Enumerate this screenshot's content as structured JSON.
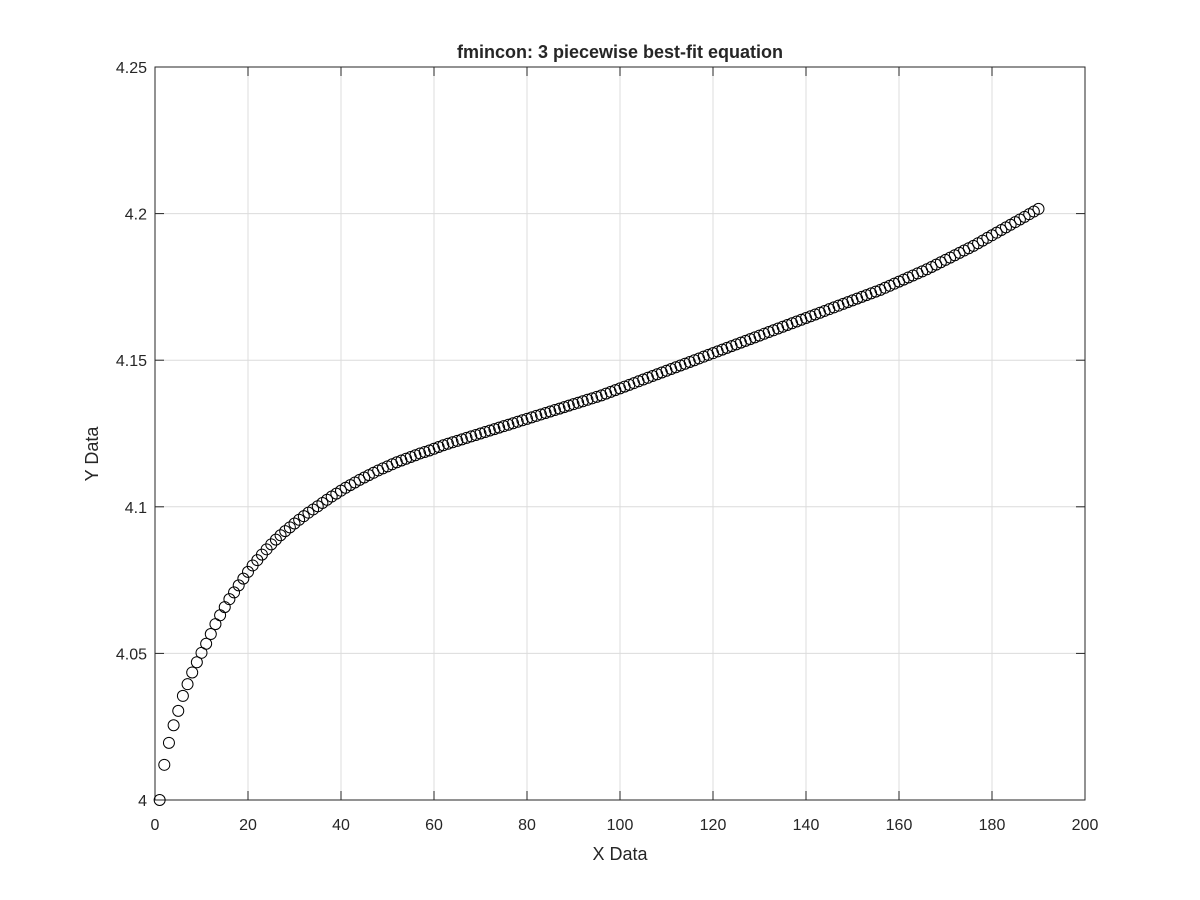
{
  "chart_data": {
    "type": "scatter",
    "title": "fmincon: 3 piecewise best-fit equation",
    "xlabel": "X Data",
    "ylabel": "Y Data",
    "xlim": [
      0,
      200
    ],
    "ylim": [
      4,
      4.25
    ],
    "xticks": [
      "0",
      "20",
      "40",
      "60",
      "80",
      "100",
      "120",
      "140",
      "160",
      "180",
      "200"
    ],
    "yticks": [
      "4",
      "4.05",
      "4.1",
      "4.15",
      "4.2",
      "4.25"
    ],
    "grid": true,
    "marker": "open-circle",
    "colors": {
      "marker": "#000000",
      "grid": "#dcdcdc",
      "axes": "#262626"
    },
    "series": [
      {
        "x": [
          1,
          2,
          3,
          4,
          5,
          6,
          7,
          8,
          9,
          10,
          11,
          12,
          13,
          14,
          15,
          16,
          17,
          18,
          19,
          20,
          21,
          22,
          23,
          24,
          25,
          26,
          27,
          28,
          29,
          30,
          31,
          32,
          33,
          34,
          35,
          36,
          37,
          38,
          39,
          40,
          41,
          42,
          43,
          44,
          45,
          46,
          47,
          48,
          49,
          50,
          51,
          52,
          53,
          54,
          55,
          56,
          57,
          58,
          59,
          60,
          61,
          62,
          63,
          64,
          65,
          66,
          67,
          68,
          69,
          70,
          71,
          72,
          73,
          74,
          75,
          76,
          77,
          78,
          79,
          80,
          81,
          82,
          83,
          84,
          85,
          86,
          87,
          88,
          89,
          90,
          91,
          92,
          93,
          94,
          95,
          96,
          97,
          98,
          99,
          100,
          101,
          102,
          103,
          104,
          105,
          106,
          107,
          108,
          109,
          110,
          111,
          112,
          113,
          114,
          115,
          116,
          117,
          118,
          119,
          120,
          121,
          122,
          123,
          124,
          125,
          126,
          127,
          128,
          129,
          130,
          131,
          132,
          133,
          134,
          135,
          136,
          137,
          138,
          139,
          140,
          141,
          142,
          143,
          144,
          145,
          146,
          147,
          148,
          149,
          150,
          151,
          152,
          153,
          154,
          155,
          156,
          157,
          158,
          159,
          160,
          161,
          162,
          163,
          164,
          165,
          166,
          167,
          168,
          169,
          170,
          171,
          172,
          173,
          174,
          175,
          176,
          177,
          178,
          179,
          180,
          181,
          182,
          183,
          184,
          185,
          186,
          187,
          188,
          189,
          190
        ],
        "y": [
          4.0,
          4.012,
          4.0195,
          4.0255,
          4.0304,
          4.0355,
          4.0395,
          4.0435,
          4.047,
          4.0502,
          4.0533,
          4.0566,
          4.06,
          4.063,
          4.0658,
          4.0685,
          4.0708,
          4.0732,
          4.0755,
          4.0778,
          4.08,
          4.0818,
          4.0837,
          4.0855,
          4.0872,
          4.0888,
          4.0903,
          4.0917,
          4.093,
          4.0943,
          4.0956,
          4.0968,
          4.098,
          4.0991,
          4.1002,
          4.1013,
          4.1024,
          4.1035,
          4.1045,
          4.1055,
          4.1065,
          4.1074,
          4.1083,
          4.1092,
          4.11,
          4.1108,
          4.1116,
          4.1124,
          4.1131,
          4.1138,
          4.1145,
          4.1152,
          4.1158,
          4.1164,
          4.117,
          4.1176,
          4.1182,
          4.1187,
          4.1192,
          4.1198,
          4.1204,
          4.121,
          4.1215,
          4.122,
          4.1225,
          4.123,
          4.1235,
          4.124,
          4.1245,
          4.125,
          4.1255,
          4.126,
          4.1265,
          4.127,
          4.1275,
          4.128,
          4.1285,
          4.129,
          4.1295,
          4.13,
          4.1305,
          4.131,
          4.1315,
          4.132,
          4.1325,
          4.133,
          4.1335,
          4.134,
          4.1345,
          4.135,
          4.1355,
          4.136,
          4.1365,
          4.137,
          4.1375,
          4.138,
          4.1386,
          4.1392,
          4.1398,
          4.1404,
          4.141,
          4.1416,
          4.1422,
          4.1428,
          4.1434,
          4.144,
          4.1446,
          4.1452,
          4.1458,
          4.1464,
          4.147,
          4.1476,
          4.1482,
          4.1488,
          4.1494,
          4.15,
          4.1506,
          4.1512,
          4.1518,
          4.1524,
          4.153,
          4.1536,
          4.1542,
          4.1548,
          4.1554,
          4.156,
          4.1566,
          4.1572,
          4.1578,
          4.1584,
          4.159,
          4.1596,
          4.1602,
          4.1608,
          4.1614,
          4.162,
          4.1626,
          4.1632,
          4.1638,
          4.1644,
          4.165,
          4.1656,
          4.1662,
          4.1668,
          4.1674,
          4.168,
          4.1686,
          4.1692,
          4.1698,
          4.1704,
          4.171,
          4.1716,
          4.1722,
          4.1728,
          4.1734,
          4.174,
          4.1747,
          4.1754,
          4.1761,
          4.1768,
          4.1775,
          4.1782,
          4.1789,
          4.1796,
          4.1803,
          4.181,
          4.1818,
          4.1826,
          4.1834,
          4.1842,
          4.185,
          4.1858,
          4.1866,
          4.1874,
          4.1882,
          4.189,
          4.1899,
          4.1908,
          4.1917,
          4.1926,
          4.1935,
          4.1944,
          4.1953,
          4.1962,
          4.1971,
          4.198,
          4.1989,
          4.1998,
          4.2007,
          4.2016
        ]
      }
    ]
  }
}
